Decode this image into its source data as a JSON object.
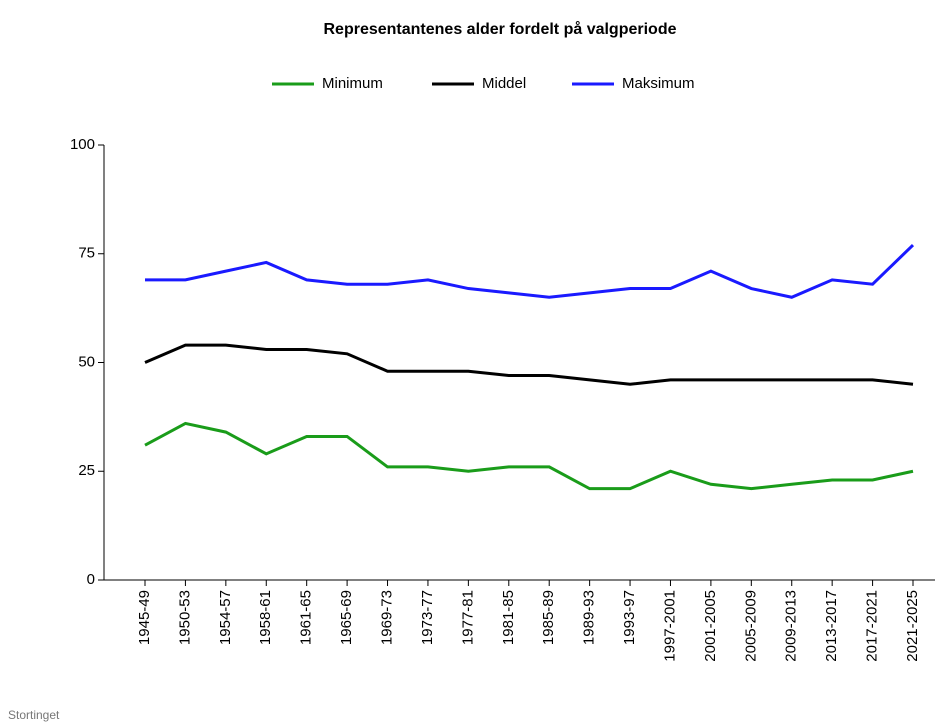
{
  "chart_data": {
    "type": "line",
    "title": "Representantenes alder fordelt på valgperiode",
    "source": "Stortinget",
    "categories": [
      "1945-49",
      "1950-53",
      "1954-57",
      "1958-61",
      "1961-65",
      "1965-69",
      "1969-73",
      "1973-77",
      "1977-81",
      "1981-85",
      "1985-89",
      "1989-93",
      "1993-97",
      "1997-2001",
      "2001-2005",
      "2005-2009",
      "2009-2013",
      "2013-2017",
      "2017-2021",
      "2021-2025"
    ],
    "series": [
      {
        "name": "Minimum",
        "color": "#1a9c1a",
        "values": [
          31,
          36,
          34,
          29,
          33,
          33,
          26,
          26,
          25,
          26,
          26,
          21,
          21,
          25,
          22,
          21,
          22,
          23,
          23,
          25
        ]
      },
      {
        "name": "Middel",
        "color": "#000000",
        "values": [
          50,
          54,
          54,
          53,
          53,
          52,
          48,
          48,
          48,
          47,
          47,
          46,
          45,
          46,
          46,
          46,
          46,
          46,
          46,
          45
        ]
      },
      {
        "name": "Maksimum",
        "color": "#1a1aff",
        "values": [
          69,
          69,
          71,
          73,
          69,
          68,
          68,
          69,
          67,
          66,
          65,
          66,
          67,
          67,
          71,
          67,
          65,
          69,
          68,
          77
        ]
      }
    ],
    "ylim": [
      0,
      100
    ],
    "yticks": [
      0,
      25,
      50,
      75,
      100
    ],
    "grid": false,
    "legend": "top"
  }
}
